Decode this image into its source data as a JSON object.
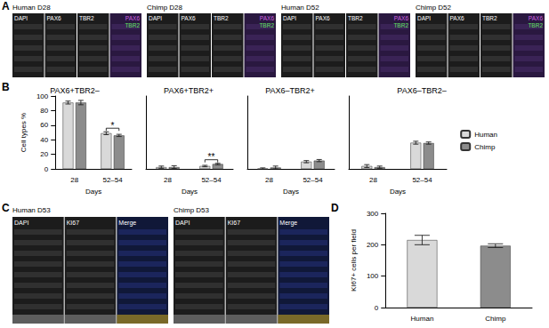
{
  "panel_labels": [
    "A",
    "B",
    "C",
    "D"
  ],
  "panel_a": {
    "groups": [
      {
        "title": "Human D28"
      },
      {
        "title": "Chimp D28"
      },
      {
        "title": "Human D52"
      },
      {
        "title": "Chimp D52"
      }
    ],
    "channels": [
      "DAPI",
      "PAX6",
      "TBR2"
    ],
    "merge": [
      {
        "text": "PAX6",
        "color": "#d060e0"
      },
      {
        "text": "TBR2",
        "color": "#60e060"
      }
    ]
  },
  "panel_c": {
    "groups": [
      {
        "title": "Human D53"
      },
      {
        "title": "Chimp D53"
      }
    ],
    "channels": [
      "DAPI",
      "KI67",
      "Merge"
    ]
  },
  "chart_data": [
    {
      "type": "bar",
      "title": "PAX6+TBR2–",
      "categories": [
        "28",
        "52–54"
      ],
      "xlabel": "Days",
      "ylabel": "Cell types %",
      "ylim": [
        0,
        100
      ],
      "yticks": [
        0,
        20,
        40,
        60,
        80,
        100
      ],
      "grid": false,
      "series": [
        {
          "name": "Human",
          "color": "#d9d9d9",
          "values": [
            91,
            49
          ],
          "errors": [
            2,
            2
          ]
        },
        {
          "name": "Chimp",
          "color": "#8c8c8c",
          "values": [
            91,
            46
          ],
          "errors": [
            3,
            1.5
          ]
        }
      ],
      "annotations": [
        {
          "text": "*",
          "category": "52–54"
        }
      ]
    },
    {
      "type": "bar",
      "title": "PAX6+TBR2+",
      "categories": [
        "28",
        "52–54"
      ],
      "xlabel": "Days",
      "ylim": [
        0,
        100
      ],
      "grid": false,
      "tick_labels": "x",
      "series": [
        {
          "name": "Human",
          "color": "#d9d9d9",
          "values": [
            2.5,
            4
          ],
          "errors": [
            1.5,
            1
          ]
        },
        {
          "name": "Chimp",
          "color": "#8c8c8c",
          "values": [
            2.5,
            6.8
          ],
          "errors": [
            2,
            1
          ]
        }
      ],
      "annotations": [
        {
          "text": "**",
          "category": "52–54"
        }
      ]
    },
    {
      "type": "bar",
      "title": "PAX6–TBR2+",
      "categories": [
        "28",
        "52–54"
      ],
      "xlabel": "Days",
      "ylim": [
        0,
        100
      ],
      "grid": false,
      "tick_labels": "x",
      "series": [
        {
          "name": "Human",
          "color": "#d9d9d9",
          "values": [
            0.5,
            10
          ],
          "errors": [
            1,
            1.5
          ]
        },
        {
          "name": "Chimp",
          "color": "#8c8c8c",
          "values": [
            2,
            11.5
          ],
          "errors": [
            2,
            1.5
          ]
        }
      ]
    },
    {
      "type": "bar",
      "title": "PAX6–TBR2–",
      "categories": [
        "28",
        "52–54"
      ],
      "xlabel": "Days",
      "ylim": [
        0,
        100
      ],
      "grid": false,
      "tick_labels": "x",
      "legend": "right",
      "series": [
        {
          "name": "Human",
          "color": "#d9d9d9",
          "values": [
            4,
            36
          ],
          "errors": [
            2,
            2
          ]
        },
        {
          "name": "Chimp",
          "color": "#8c8c8c",
          "values": [
            2.5,
            35.5
          ],
          "errors": [
            1.5,
            1.5
          ]
        }
      ]
    },
    {
      "type": "bar",
      "categories": [
        "Human",
        "Chimp"
      ],
      "ylabel": "KI67+ cells per field",
      "ylim": [
        0,
        300
      ],
      "yticks": [
        0,
        100,
        200,
        300
      ],
      "grid": false,
      "values": [
        215,
        197
      ],
      "errors": [
        15,
        6
      ],
      "colors": [
        "#d9d9d9",
        "#8c8c8c"
      ]
    }
  ]
}
